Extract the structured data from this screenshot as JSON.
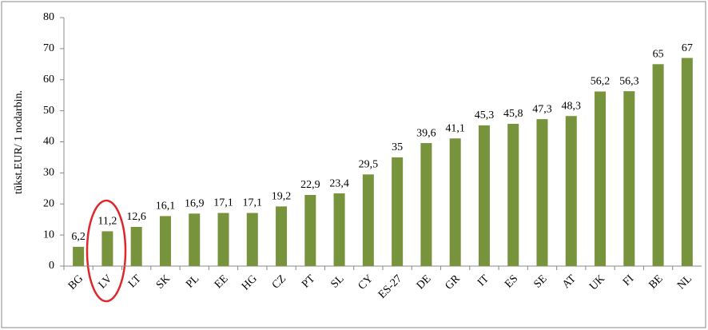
{
  "chart_data": {
    "type": "bar",
    "y_axis_label": "tūkst.EUR/ 1 nodarbin.",
    "categories": [
      "BG",
      "LV",
      "LT",
      "SK",
      "PL",
      "EE",
      "HG",
      "CZ",
      "PT",
      "SL",
      "CY",
      "ES-27",
      "DE",
      "GR",
      "IT",
      "ES",
      "SE",
      "AT",
      "UK",
      "FI",
      "BE",
      "NL"
    ],
    "values": [
      6.2,
      11.2,
      12.6,
      16.1,
      16.9,
      17.1,
      17.1,
      19.2,
      22.9,
      23.4,
      29.5,
      35,
      39.6,
      41.1,
      45.3,
      45.8,
      47.3,
      48.3,
      56.2,
      56.3,
      65,
      67
    ],
    "value_labels": [
      "6,2",
      "11,2",
      "12,6",
      "16,1",
      "16,9",
      "17,1",
      "17,1",
      "19,2",
      "22,9",
      "23,4",
      "29,5",
      "35",
      "39,6",
      "41,1",
      "45,3",
      "45,8",
      "47,3",
      "48,3",
      "56,2",
      "56,3",
      "65",
      "67"
    ],
    "color": "#77933c",
    "ylim": [
      0,
      80
    ],
    "yticks": [
      0,
      10,
      20,
      30,
      40,
      50,
      60,
      70,
      80
    ],
    "grid": false
  }
}
